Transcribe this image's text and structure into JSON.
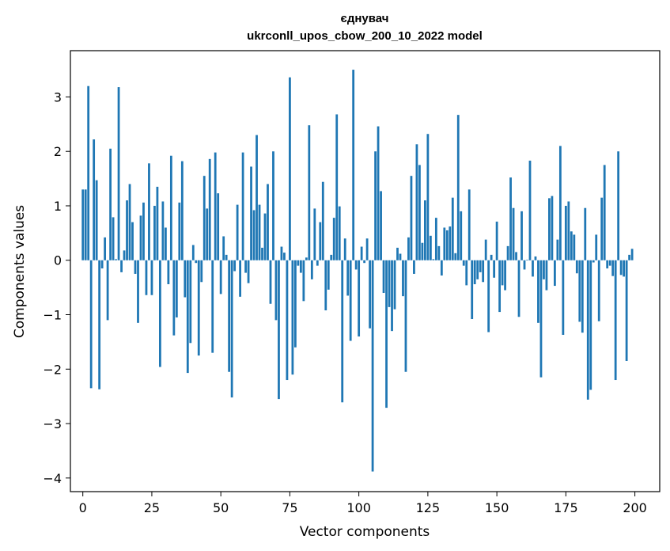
{
  "chart_data": {
    "type": "bar",
    "title": "єднувач",
    "subtitle": "ukrconll_upos_cbow_200_10_2022 model",
    "xlabel": "Vector components",
    "ylabel": "Components values",
    "xlim": [
      -4.5,
      209
    ],
    "ylim": [
      -4.25,
      3.85
    ],
    "xticks": [
      0,
      25,
      50,
      75,
      100,
      125,
      150,
      175,
      200
    ],
    "xtick_labels": [
      "0",
      "25",
      "50",
      "75",
      "100",
      "125",
      "150",
      "175",
      "200"
    ],
    "yticks": [
      -4,
      -3,
      -2,
      -1,
      0,
      1,
      2,
      3
    ],
    "ytick_labels": [
      "−4",
      "−3",
      "−2",
      "−1",
      "0",
      "1",
      "2",
      "3"
    ],
    "grid": false,
    "bar_color": "#1f77b4",
    "values": [
      1.3,
      1.3,
      3.2,
      -2.35,
      2.22,
      1.47,
      -2.37,
      -0.15,
      0.42,
      -1.1,
      2.05,
      0.79,
      0.02,
      3.18,
      -0.22,
      0.18,
      1.1,
      1.4,
      0.7,
      -0.25,
      -1.15,
      0.82,
      1.06,
      -0.64,
      1.78,
      -0.64,
      1.0,
      1.35,
      -1.96,
      1.08,
      0.6,
      -0.44,
      1.92,
      -1.38,
      -1.05,
      1.06,
      1.82,
      -0.68,
      -2.07,
      -1.52,
      0.28,
      -0.05,
      -1.75,
      -0.4,
      1.55,
      0.95,
      1.86,
      -1.7,
      1.98,
      1.23,
      -0.62,
      0.44,
      0.1,
      -2.05,
      -2.52,
      -0.2,
      1.02,
      -0.67,
      1.98,
      -0.23,
      -0.42,
      1.72,
      0.92,
      2.3,
      1.02,
      0.23,
      0.86,
      1.4,
      -0.8,
      2.0,
      -1.1,
      -2.55,
      0.25,
      0.14,
      -2.2,
      3.36,
      -2.1,
      -1.6,
      -0.1,
      -0.23,
      -0.75,
      0.05,
      2.48,
      -0.35,
      0.95,
      -0.1,
      0.7,
      1.44,
      -0.92,
      -0.54,
      0.1,
      0.78,
      2.68,
      0.99,
      -2.61,
      0.4,
      -0.65,
      -1.48,
      3.5,
      -0.17,
      -1.4,
      0.25,
      -0.05,
      0.4,
      -1.25,
      -3.88,
      2.0,
      2.46,
      1.27,
      -0.6,
      -2.71,
      -0.86,
      -1.3,
      -0.9,
      0.23,
      0.12,
      -0.66,
      -2.05,
      0.42,
      1.55,
      -0.25,
      2.13,
      1.75,
      0.32,
      1.1,
      2.32,
      0.45,
      0.02,
      0.78,
      0.26,
      -0.28,
      0.6,
      0.55,
      0.62,
      1.15,
      0.13,
      2.67,
      0.9,
      -0.1,
      -0.46,
      1.3,
      -1.08,
      -0.44,
      -0.35,
      -0.22,
      -0.4,
      0.38,
      -1.32,
      0.1,
      -0.32,
      0.71,
      -0.95,
      -0.46,
      -0.55,
      0.26,
      1.52,
      0.96,
      0.15,
      -1.04,
      0.9,
      -0.17,
      0.01,
      1.83,
      -0.3,
      0.07,
      -1.15,
      -2.15,
      -0.35,
      -0.55,
      1.14,
      1.18,
      -0.47,
      0.38,
      2.1,
      -1.37,
      1.0,
      1.08,
      0.53,
      0.47,
      -0.24,
      -1.13,
      -1.33,
      0.96,
      -2.56,
      -2.38,
      -0.04,
      0.47,
      -1.12,
      1.15,
      1.75,
      -0.15,
      -0.1,
      -0.29,
      -2.2,
      2.0,
      -0.27,
      -0.3,
      -1.85,
      0.1,
      0.21
    ]
  }
}
